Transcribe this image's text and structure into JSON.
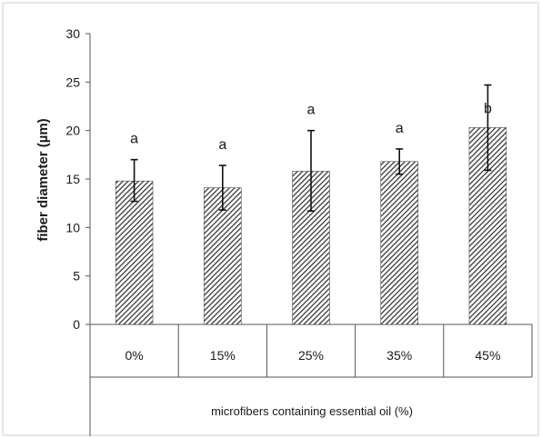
{
  "chart_data": {
    "type": "bar",
    "title": "",
    "xlabel": "microfibers containing essential oil (%)",
    "ylabel": "fiber diameter (µm)",
    "categories": [
      "0%",
      "15%",
      "25%",
      "35%",
      "45%"
    ],
    "values": [
      14.8,
      14.1,
      15.8,
      16.8,
      20.3
    ],
    "error_upper": [
      17.0,
      16.4,
      20.0,
      18.1,
      24.7
    ],
    "error_lower": [
      12.7,
      11.8,
      11.7,
      15.5,
      15.9
    ],
    "significance_labels": [
      "a",
      "a",
      "a",
      "a",
      "b"
    ],
    "ylim": [
      0,
      30
    ],
    "yticks": [
      0,
      5,
      10,
      15,
      20,
      25,
      30
    ],
    "grid": false,
    "legend": "none",
    "bar_fill": "diagonal-hatch",
    "colors": {
      "bar_hatch": "#2b2b2b",
      "axis": "#555555",
      "text": "#1a1a1a"
    }
  }
}
